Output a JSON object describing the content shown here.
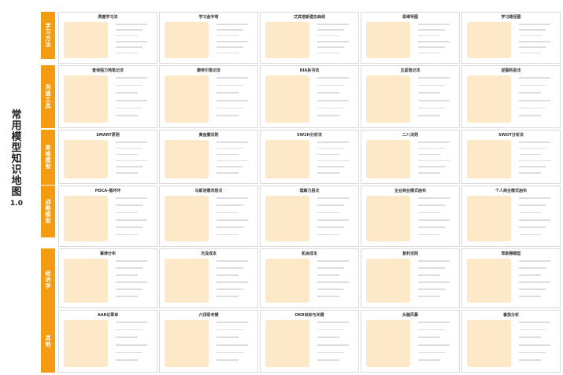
{
  "main_title": [
    "常",
    "用",
    "模",
    "型",
    "知",
    "识",
    "地",
    "图",
    "1.0"
  ],
  "categories": [
    {
      "name": "学习方法",
      "top": 15,
      "h": 60
    },
    {
      "name": "沟通工具",
      "top": 83,
      "h": 80
    },
    {
      "name": "思维模型",
      "top": 165,
      "h": 70
    },
    {
      "name": "战略模型",
      "top": 236,
      "h": 66
    },
    {
      "name": "经济学",
      "top": 316,
      "h": 80
    },
    {
      "name": "其他",
      "top": 394,
      "h": 80
    }
  ],
  "rows": [
    [
      "费曼学习法",
      "学习金字塔",
      "艾宾浩斯遗忘曲线",
      "思维导图",
      "学习路径图"
    ],
    [
      "查询强力地笔记法",
      "康奈尔笔记法",
      "RIA拆书法",
      "五星笔记法",
      "逆图构思法"
    ],
    [
      "SMART原则",
      "黄金圈法则",
      "5W2H分析法",
      "二八法则",
      "SWOT分析法"
    ],
    [
      "PDCA-循环环",
      "马斯洛需求层次",
      "理解力层次",
      "企业商业模式画布",
      "个人商业模式画布"
    ],
    [
      "幂律分布",
      "沉没成本",
      "机会成本",
      "复利法则",
      "草斯穆模型"
    ],
    [
      "AAR记录单",
      "六顶思考帽",
      "OKR目标与关键",
      "头脑风暴",
      "番茄分析"
    ]
  ],
  "row_tops": [
    15,
    83,
    165,
    236,
    316,
    394
  ],
  "colors": {
    "accent": "#f39c12",
    "light": "#fde8c8"
  }
}
